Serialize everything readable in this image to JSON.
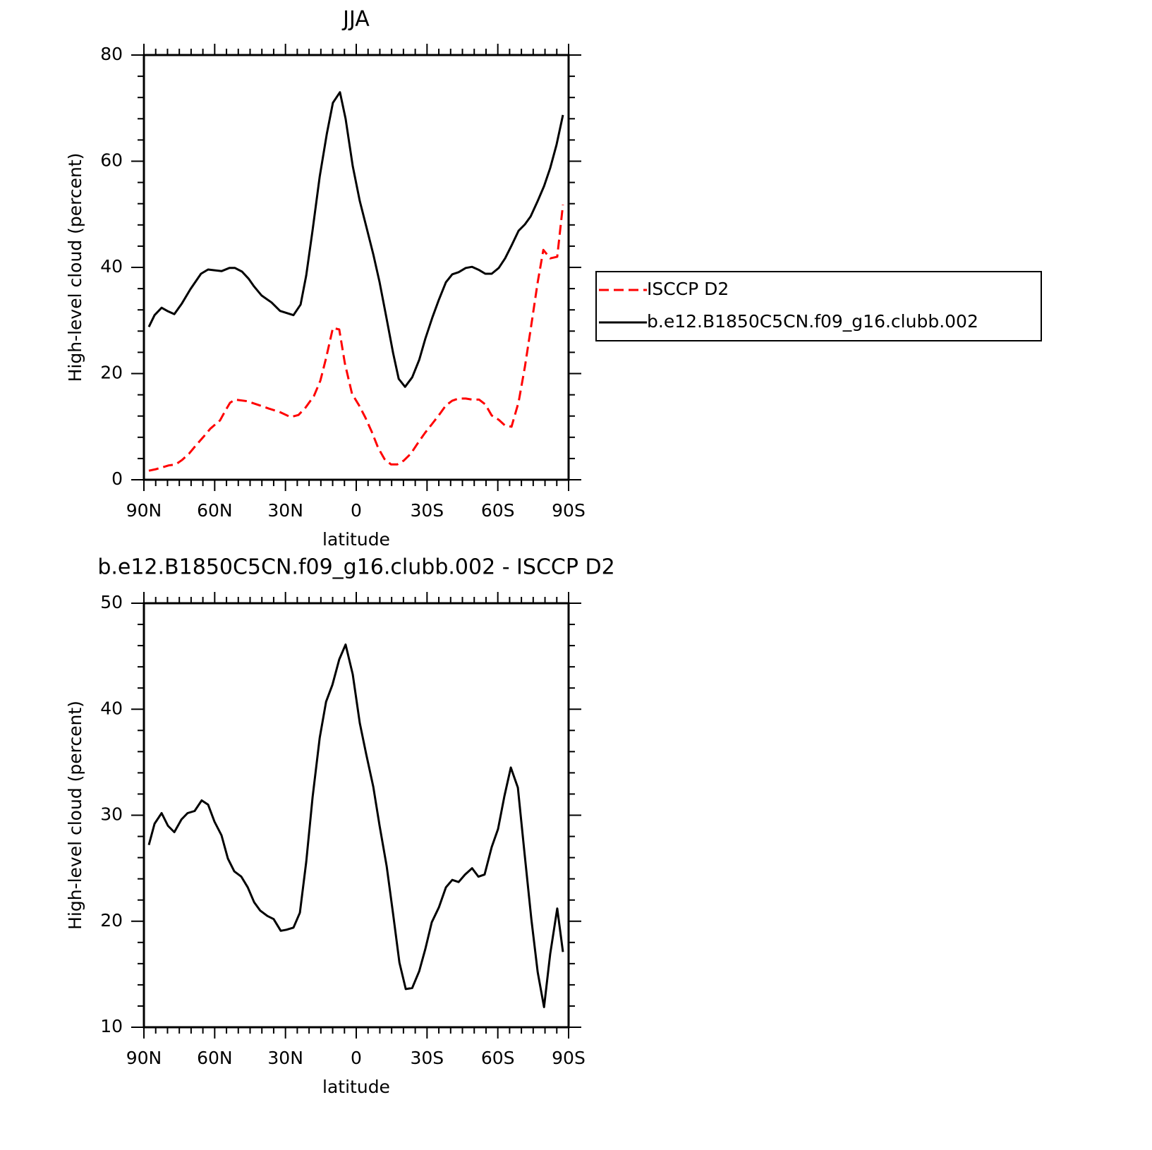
{
  "chart_data": [
    {
      "type": "line",
      "title": "JJA",
      "x_label": "latitude",
      "y_label": "High-level cloud (percent)",
      "xlim": [
        90,
        -90
      ],
      "xticks": [
        {
          "value": 90,
          "label": "90N"
        },
        {
          "value": 60,
          "label": "60N"
        },
        {
          "value": 30,
          "label": "30N"
        },
        0,
        {
          "value": -30,
          "label": "30S"
        },
        {
          "value": -60,
          "label": "60S"
        },
        {
          "value": -90,
          "label": "90S"
        }
      ],
      "ylim": [
        0,
        80
      ],
      "yticks": [
        0,
        20,
        40,
        60,
        80
      ],
      "legend": "outside-right",
      "series": [
        {
          "name": "ISCCP D2",
          "color": "#ff0000",
          "line_style": "dashed",
          "x": [
            87.9,
            84.9,
            82.5,
            79.5,
            76.5,
            73.9,
            70.9,
            67.9,
            64.9,
            61.9,
            57.7,
            55.6,
            53.5,
            51.4,
            46.3,
            41.5,
            37.0,
            32.6,
            27.8,
            24.5,
            21.5,
            17.9,
            15.2,
            12.8,
            9.9,
            7.2,
            4.8,
            1.8,
            -1.2,
            -3.9,
            -6.6,
            -9.3,
            -12.0,
            -14.7,
            -17.4,
            -20.1,
            -23.1,
            -26.1,
            -29.1,
            -32.1,
            -35.4,
            -38.0,
            -40.7,
            -43.4,
            -46.4,
            -49.1,
            -52.1,
            -54.7,
            -57.4,
            -60.4,
            -63.1,
            -65.8,
            -68.8,
            -71.5,
            -74.2,
            -76.9,
            -79.3,
            -82.2,
            -85.2,
            -87.6
          ],
          "values": [
            1.7,
            2.0,
            2.3,
            2.7,
            2.9,
            3.7,
            4.9,
            6.5,
            8.0,
            9.6,
            11.2,
            12.9,
            14.5,
            15.1,
            14.8,
            14.1,
            13.4,
            12.8,
            11.8,
            12.2,
            13.6,
            15.8,
            18.7,
            22.9,
            28.6,
            28.3,
            21.9,
            16.2,
            14.0,
            11.7,
            9.0,
            6.0,
            3.9,
            2.9,
            2.9,
            3.6,
            4.9,
            6.9,
            8.8,
            10.5,
            12.4,
            14.0,
            14.9,
            15.3,
            15.3,
            15.1,
            15.1,
            14.2,
            12.1,
            11.3,
            10.2,
            10.0,
            14.6,
            21.3,
            29.2,
            37.2,
            43.3,
            41.7,
            42.0,
            51.8
          ]
        },
        {
          "name": "b.e12.B1850C5CN.f09_g16.clubb.002",
          "color": "#000000",
          "line_style": "solid",
          "x": [
            87.9,
            85.5,
            82.5,
            80.1,
            77.1,
            73.9,
            70.3,
            65.8,
            62.8,
            57.1,
            53.8,
            51.4,
            48.4,
            45.7,
            43.3,
            40.1,
            35.9,
            32.3,
            26.6,
            23.6,
            21.2,
            18.5,
            15.5,
            12.5,
            9.9,
            6.9,
            4.5,
            1.5,
            -1.5,
            -4.2,
            -7.2,
            -9.9,
            -12.9,
            -15.6,
            -18.0,
            -20.7,
            -23.7,
            -26.7,
            -29.3,
            -32.3,
            -35.0,
            -38.0,
            -40.7,
            -43.4,
            -46.4,
            -49.1,
            -52.1,
            -54.7,
            -57.4,
            -60.4,
            -63.1,
            -65.8,
            -68.8,
            -71.5,
            -73.9,
            -76.9,
            -79.6,
            -82.2,
            -84.9,
            -87.6
          ],
          "values": [
            28.8,
            31.0,
            32.4,
            31.8,
            31.2,
            33.2,
            35.9,
            38.8,
            39.6,
            39.3,
            39.9,
            39.9,
            39.2,
            37.9,
            36.4,
            34.7,
            33.4,
            31.8,
            31.0,
            33.0,
            38.5,
            47.0,
            57.1,
            65.1,
            71.0,
            73.0,
            68.0,
            59.1,
            52.5,
            47.8,
            42.5,
            37.2,
            30.3,
            23.9,
            19.0,
            17.5,
            19.3,
            22.6,
            26.6,
            30.6,
            33.9,
            37.2,
            38.7,
            39.1,
            39.9,
            40.1,
            39.5,
            38.8,
            38.8,
            39.9,
            41.7,
            44.1,
            46.9,
            48.1,
            49.6,
            52.5,
            55.3,
            58.7,
            63.1,
            68.7
          ]
        }
      ]
    },
    {
      "type": "line",
      "title": "b.e12.B1850C5CN.f09_g16.clubb.002 - ISCCP D2",
      "x_label": "latitude",
      "y_label": "High-level cloud (percent)",
      "xlim": [
        90,
        -90
      ],
      "xticks": [
        {
          "value": 90,
          "label": "90N"
        },
        {
          "value": 60,
          "label": "60N"
        },
        {
          "value": 30,
          "label": "30N"
        },
        0,
        {
          "value": -30,
          "label": "30S"
        },
        {
          "value": -60,
          "label": "60S"
        },
        {
          "value": -90,
          "label": "90S"
        }
      ],
      "ylim": [
        10,
        50
      ],
      "yticks": [
        10,
        20,
        30,
        40,
        50
      ],
      "color": "#000000",
      "x": [
        87.9,
        85.5,
        82.5,
        79.8,
        77.1,
        74.1,
        71.5,
        68.5,
        65.5,
        62.8,
        60.1,
        57.1,
        54.4,
        51.7,
        48.7,
        46.0,
        43.3,
        40.7,
        37.7,
        35.0,
        32.0,
        29.6,
        26.6,
        23.9,
        21.2,
        18.5,
        15.5,
        12.8,
        10.1,
        7.2,
        4.5,
        1.5,
        -1.5,
        -4.2,
        -7.2,
        -9.9,
        -12.9,
        -15.6,
        -18.3,
        -21.0,
        -23.7,
        -26.7,
        -29.3,
        -32.0,
        -35.0,
        -38.0,
        -40.7,
        -43.4,
        -46.1,
        -49.1,
        -51.8,
        -54.4,
        -57.4,
        -60.1,
        -62.8,
        -65.5,
        -68.5,
        -71.2,
        -74.2,
        -76.9,
        -79.6,
        -82.2,
        -85.2,
        -87.6
      ],
      "values": [
        27.2,
        29.2,
        30.2,
        29.0,
        28.4,
        29.6,
        30.2,
        30.4,
        31.4,
        31.0,
        29.4,
        28.1,
        25.9,
        24.7,
        24.2,
        23.2,
        21.8,
        21.0,
        20.5,
        20.2,
        19.1,
        19.2,
        19.4,
        20.8,
        25.6,
        31.7,
        37.3,
        40.7,
        42.3,
        44.7,
        46.1,
        43.3,
        38.7,
        35.8,
        32.7,
        29.0,
        25.2,
        20.7,
        16.1,
        13.6,
        13.7,
        15.3,
        17.4,
        19.9,
        21.3,
        23.2,
        23.9,
        23.7,
        24.4,
        25.0,
        24.2,
        24.4,
        27.0,
        28.7,
        31.8,
        34.5,
        32.6,
        26.7,
        20.2,
        15.2,
        11.9,
        16.9,
        21.2,
        17.1
      ]
    }
  ]
}
